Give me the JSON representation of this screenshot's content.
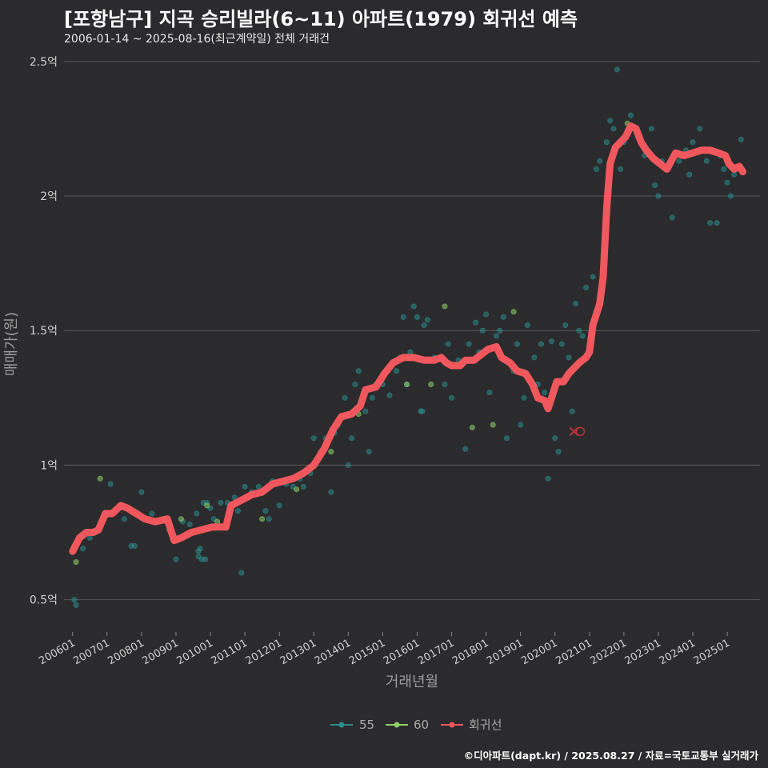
{
  "header": {
    "title": "[포항남구] 지곡 승리빌라(6~11) 아파트(1979) 회귀선 예측",
    "subtitle": "2006-01-14 ~ 2025-08-16(최근계약일) 전체 거래건"
  },
  "footer": {
    "credit": "©디아파트(dapt.kr) / 2025.08.27 / 자료=국토교통부 실거래가"
  },
  "colors": {
    "background": "#2b2b2d",
    "grid": "#5a5a5a",
    "series_55": "#2a8c8c",
    "series_60": "#8fd16a",
    "regression": "#f0585e"
  },
  "chart_data": {
    "type": "scatter",
    "title": "[포항남구] 지곡 승리빌라(6~11) 아파트(1979) 회귀선 예측",
    "xlabel": "거래년월",
    "ylabel": "매매가(원)",
    "xlim": [
      2005.75,
      2025.95
    ],
    "ylim": [
      0.38,
      2.55
    ],
    "y_ticks": [
      {
        "value": 0.5,
        "label": "0.5억"
      },
      {
        "value": 1.0,
        "label": "1억"
      },
      {
        "value": 1.5,
        "label": "1.5억"
      },
      {
        "value": 2.0,
        "label": "2억"
      },
      {
        "value": 2.5,
        "label": "2.5억"
      }
    ],
    "x_ticks": [
      {
        "value": 2006.0,
        "label": "200601"
      },
      {
        "value": 2007.0,
        "label": "200701"
      },
      {
        "value": 2008.0,
        "label": "200801"
      },
      {
        "value": 2009.0,
        "label": "200901"
      },
      {
        "value": 2010.0,
        "label": "201001"
      },
      {
        "value": 2011.0,
        "label": "201101"
      },
      {
        "value": 2012.0,
        "label": "201201"
      },
      {
        "value": 2013.0,
        "label": "201301"
      },
      {
        "value": 2014.0,
        "label": "201401"
      },
      {
        "value": 2015.0,
        "label": "201501"
      },
      {
        "value": 2016.0,
        "label": "201601"
      },
      {
        "value": 2017.0,
        "label": "201701"
      },
      {
        "value": 2018.0,
        "label": "201801"
      },
      {
        "value": 2019.0,
        "label": "201901"
      },
      {
        "value": 2020.0,
        "label": "202001"
      },
      {
        "value": 2021.0,
        "label": "202101"
      },
      {
        "value": 2022.0,
        "label": "202201"
      },
      {
        "value": 2023.0,
        "label": "202301"
      },
      {
        "value": 2024.0,
        "label": "202401"
      },
      {
        "value": 2025.0,
        "label": "202501"
      }
    ],
    "series": [
      {
        "name": "55",
        "points": [
          [
            2006.05,
            0.5
          ],
          [
            2006.1,
            0.48
          ],
          [
            2006.3,
            0.69
          ],
          [
            2006.5,
            0.73
          ],
          [
            2006.7,
            0.76
          ],
          [
            2006.9,
            0.8
          ],
          [
            2007.1,
            0.93
          ],
          [
            2007.2,
            0.83
          ],
          [
            2007.5,
            0.8
          ],
          [
            2007.7,
            0.7
          ],
          [
            2007.8,
            0.7
          ],
          [
            2008.0,
            0.9
          ],
          [
            2008.3,
            0.82
          ],
          [
            2008.6,
            0.8
          ],
          [
            2008.8,
            0.76
          ],
          [
            2009.0,
            0.65
          ],
          [
            2009.2,
            0.79
          ],
          [
            2009.4,
            0.78
          ],
          [
            2009.6,
            0.82
          ],
          [
            2009.65,
            0.68
          ],
          [
            2009.65,
            0.66
          ],
          [
            2009.7,
            0.69
          ],
          [
            2009.75,
            0.65
          ],
          [
            2009.8,
            0.86
          ],
          [
            2009.85,
            0.65
          ],
          [
            2009.9,
            0.86
          ],
          [
            2010.0,
            0.84
          ],
          [
            2010.1,
            0.8
          ],
          [
            2010.3,
            0.86
          ],
          [
            2010.5,
            0.86
          ],
          [
            2010.7,
            0.88
          ],
          [
            2010.8,
            0.83
          ],
          [
            2010.9,
            0.6
          ],
          [
            2011.0,
            0.92
          ],
          [
            2011.2,
            0.9
          ],
          [
            2011.4,
            0.92
          ],
          [
            2011.6,
            0.83
          ],
          [
            2011.7,
            0.8
          ],
          [
            2011.8,
            0.94
          ],
          [
            2012.0,
            0.85
          ],
          [
            2012.2,
            0.93
          ],
          [
            2012.4,
            0.92
          ],
          [
            2012.6,
            0.95
          ],
          [
            2012.7,
            0.92
          ],
          [
            2012.9,
            0.97
          ],
          [
            2013.0,
            1.1
          ],
          [
            2013.1,
            1.02
          ],
          [
            2013.2,
            1.05
          ],
          [
            2013.35,
            1.1
          ],
          [
            2013.5,
            0.9
          ],
          [
            2013.6,
            1.12
          ],
          [
            2013.7,
            1.15
          ],
          [
            2013.9,
            1.25
          ],
          [
            2014.0,
            1.0
          ],
          [
            2014.1,
            1.1
          ],
          [
            2014.2,
            1.3
          ],
          [
            2014.3,
            1.35
          ],
          [
            2014.5,
            1.2
          ],
          [
            2014.6,
            1.05
          ],
          [
            2014.7,
            1.25
          ],
          [
            2014.8,
            1.3
          ],
          [
            2015.0,
            1.3
          ],
          [
            2015.2,
            1.26
          ],
          [
            2015.4,
            1.35
          ],
          [
            2015.5,
            1.4
          ],
          [
            2015.6,
            1.55
          ],
          [
            2015.7,
            1.3
          ],
          [
            2015.8,
            1.42
          ],
          [
            2015.9,
            1.59
          ],
          [
            2016.0,
            1.55
          ],
          [
            2016.1,
            1.2
          ],
          [
            2016.15,
            1.2
          ],
          [
            2016.2,
            1.52
          ],
          [
            2016.3,
            1.54
          ],
          [
            2016.5,
            1.4
          ],
          [
            2016.7,
            1.4
          ],
          [
            2016.8,
            1.3
          ],
          [
            2016.9,
            1.45
          ],
          [
            2017.0,
            1.25
          ],
          [
            2017.2,
            1.39
          ],
          [
            2017.4,
            1.06
          ],
          [
            2017.5,
            1.45
          ],
          [
            2017.7,
            1.53
          ],
          [
            2017.8,
            1.42
          ],
          [
            2017.9,
            1.5
          ],
          [
            2018.0,
            1.56
          ],
          [
            2018.1,
            1.27
          ],
          [
            2018.3,
            1.48
          ],
          [
            2018.4,
            1.5
          ],
          [
            2018.5,
            1.55
          ],
          [
            2018.6,
            1.1
          ],
          [
            2018.8,
            1.35
          ],
          [
            2018.9,
            1.45
          ],
          [
            2019.0,
            1.15
          ],
          [
            2019.1,
            1.25
          ],
          [
            2019.2,
            1.52
          ],
          [
            2019.4,
            1.4
          ],
          [
            2019.5,
            1.3
          ],
          [
            2019.6,
            1.45
          ],
          [
            2019.7,
            1.27
          ],
          [
            2019.8,
            0.95
          ],
          [
            2019.9,
            1.46
          ],
          [
            2020.0,
            1.1
          ],
          [
            2020.1,
            1.05
          ],
          [
            2020.2,
            1.45
          ],
          [
            2020.3,
            1.52
          ],
          [
            2020.4,
            1.4
          ],
          [
            2020.5,
            1.2
          ],
          [
            2020.6,
            1.6
          ],
          [
            2020.7,
            1.5
          ],
          [
            2020.8,
            1.48
          ],
          [
            2020.9,
            1.66
          ],
          [
            2021.1,
            1.7
          ],
          [
            2021.2,
            2.1
          ],
          [
            2021.3,
            2.13
          ],
          [
            2021.5,
            2.2
          ],
          [
            2021.6,
            2.28
          ],
          [
            2021.7,
            2.25
          ],
          [
            2021.8,
            2.47
          ],
          [
            2021.9,
            2.1
          ],
          [
            2022.0,
            2.2
          ],
          [
            2022.2,
            2.3
          ],
          [
            2022.4,
            2.22
          ],
          [
            2022.6,
            2.15
          ],
          [
            2022.8,
            2.25
          ],
          [
            2022.9,
            2.04
          ],
          [
            2023.0,
            2.0
          ],
          [
            2023.1,
            2.13
          ],
          [
            2023.2,
            2.1
          ],
          [
            2023.4,
            1.92
          ],
          [
            2023.6,
            2.13
          ],
          [
            2023.8,
            2.17
          ],
          [
            2023.9,
            2.08
          ],
          [
            2024.0,
            2.2
          ],
          [
            2024.2,
            2.25
          ],
          [
            2024.4,
            2.13
          ],
          [
            2024.5,
            1.9
          ],
          [
            2024.7,
            1.9
          ],
          [
            2024.8,
            2.15
          ],
          [
            2024.9,
            2.1
          ],
          [
            2025.0,
            2.05
          ],
          [
            2025.1,
            2.0
          ],
          [
            2025.2,
            2.08
          ],
          [
            2025.4,
            2.21
          ],
          [
            2025.45,
            2.09
          ]
        ]
      },
      {
        "name": "60",
        "points": [
          [
            2006.1,
            0.64
          ],
          [
            2006.8,
            0.95
          ],
          [
            2009.15,
            0.8
          ],
          [
            2009.9,
            0.85
          ],
          [
            2010.2,
            0.79
          ],
          [
            2011.5,
            0.8
          ],
          [
            2012.5,
            0.91
          ],
          [
            2013.5,
            1.05
          ],
          [
            2014.3,
            1.19
          ],
          [
            2015.7,
            1.3
          ],
          [
            2016.4,
            1.3
          ],
          [
            2016.8,
            1.59
          ],
          [
            2017.6,
            1.14
          ],
          [
            2018.2,
            1.15
          ],
          [
            2018.8,
            1.57
          ],
          [
            2021.6,
            2.1
          ],
          [
            2022.1,
            2.27
          ]
        ]
      }
    ],
    "regression": {
      "name": "회귀선",
      "points": [
        [
          2006.0,
          0.68
        ],
        [
          2006.2,
          0.73
        ],
        [
          2006.4,
          0.75
        ],
        [
          2006.6,
          0.75
        ],
        [
          2006.75,
          0.76
        ],
        [
          2006.95,
          0.82
        ],
        [
          2007.15,
          0.82
        ],
        [
          2007.4,
          0.85
        ],
        [
          2007.6,
          0.84
        ],
        [
          2007.85,
          0.82
        ],
        [
          2008.1,
          0.8
        ],
        [
          2008.4,
          0.79
        ],
        [
          2008.75,
          0.8
        ],
        [
          2008.95,
          0.72
        ],
        [
          2009.15,
          0.73
        ],
        [
          2009.45,
          0.75
        ],
        [
          2009.75,
          0.76
        ],
        [
          2010.05,
          0.77
        ],
        [
          2010.45,
          0.77
        ],
        [
          2010.6,
          0.85
        ],
        [
          2010.9,
          0.87
        ],
        [
          2011.2,
          0.89
        ],
        [
          2011.5,
          0.9
        ],
        [
          2011.8,
          0.93
        ],
        [
          2012.1,
          0.94
        ],
        [
          2012.4,
          0.95
        ],
        [
          2012.7,
          0.97
        ],
        [
          2013.0,
          1.0
        ],
        [
          2013.3,
          1.06
        ],
        [
          2013.55,
          1.13
        ],
        [
          2013.8,
          1.18
        ],
        [
          2014.1,
          1.19
        ],
        [
          2014.35,
          1.22
        ],
        [
          2014.5,
          1.28
        ],
        [
          2014.8,
          1.29
        ],
        [
          2015.05,
          1.34
        ],
        [
          2015.3,
          1.38
        ],
        [
          2015.6,
          1.4
        ],
        [
          2015.9,
          1.4
        ],
        [
          2016.2,
          1.39
        ],
        [
          2016.5,
          1.39
        ],
        [
          2016.7,
          1.4
        ],
        [
          2016.85,
          1.38
        ],
        [
          2017.0,
          1.37
        ],
        [
          2017.25,
          1.37
        ],
        [
          2017.4,
          1.39
        ],
        [
          2017.65,
          1.39
        ],
        [
          2017.85,
          1.41
        ],
        [
          2018.05,
          1.43
        ],
        [
          2018.3,
          1.44
        ],
        [
          2018.45,
          1.4
        ],
        [
          2018.7,
          1.38
        ],
        [
          2018.9,
          1.35
        ],
        [
          2019.15,
          1.34
        ],
        [
          2019.35,
          1.3
        ],
        [
          2019.5,
          1.25
        ],
        [
          2019.7,
          1.24
        ],
        [
          2019.8,
          1.21
        ],
        [
          2019.95,
          1.27
        ],
        [
          2020.05,
          1.31
        ],
        [
          2020.25,
          1.31
        ],
        [
          2020.4,
          1.34
        ],
        [
          2020.55,
          1.36
        ],
        [
          2020.7,
          1.38
        ],
        [
          2020.9,
          1.4
        ],
        [
          2021.0,
          1.42
        ],
        [
          2021.1,
          1.52
        ],
        [
          2021.3,
          1.6
        ],
        [
          2021.4,
          1.7
        ],
        [
          2021.5,
          1.95
        ],
        [
          2021.6,
          2.12
        ],
        [
          2021.75,
          2.18
        ],
        [
          2021.9,
          2.2
        ],
        [
          2022.05,
          2.22
        ],
        [
          2022.2,
          2.26
        ],
        [
          2022.35,
          2.25
        ],
        [
          2022.5,
          2.2
        ],
        [
          2022.65,
          2.17
        ],
        [
          2022.85,
          2.14
        ],
        [
          2023.05,
          2.12
        ],
        [
          2023.25,
          2.1
        ],
        [
          2023.5,
          2.16
        ],
        [
          2023.75,
          2.15
        ],
        [
          2024.0,
          2.16
        ],
        [
          2024.25,
          2.17
        ],
        [
          2024.5,
          2.17
        ],
        [
          2024.75,
          2.16
        ],
        [
          2024.95,
          2.15
        ],
        [
          2025.05,
          2.12
        ],
        [
          2025.2,
          2.1
        ],
        [
          2025.35,
          2.11
        ],
        [
          2025.45,
          2.09
        ]
      ],
      "outlier_marks": [
        [
          2020.55,
          1.125
        ]
      ]
    },
    "legend": {
      "placement": "bottom",
      "items": [
        {
          "label": "55"
        },
        {
          "label": "60"
        },
        {
          "label": "회귀선"
        }
      ]
    }
  }
}
